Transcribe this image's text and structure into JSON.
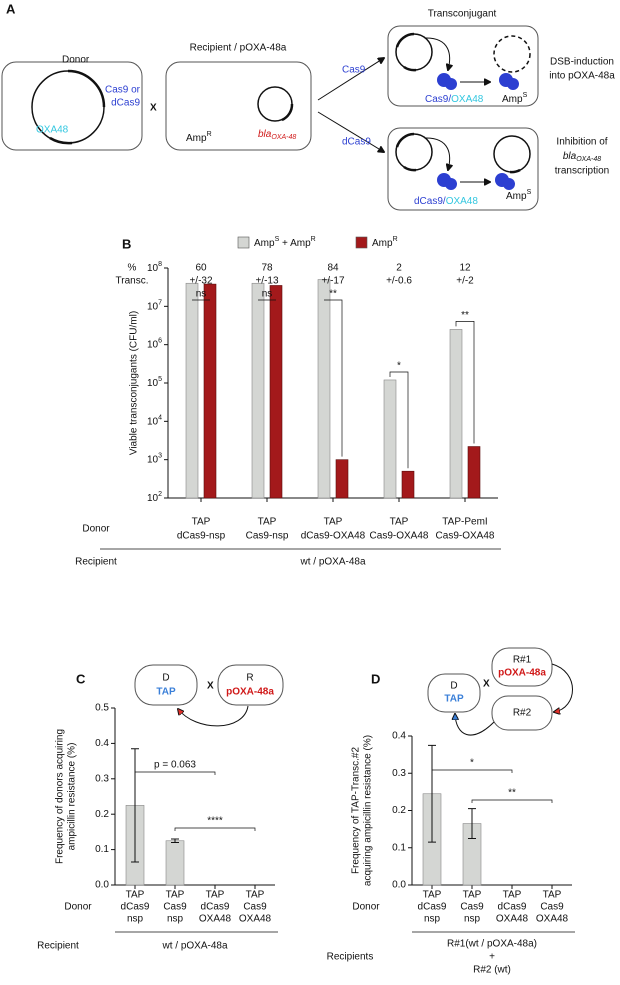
{
  "panel_a": {
    "label": "A",
    "donor": {
      "title": "Donor",
      "cas9": [
        "Cas9 or",
        "dCas9"
      ],
      "oxa": "OXA48"
    },
    "cross": "X",
    "recipient": {
      "title": "Recipient / pOXA-48a",
      "gene": "blaOXA-48",
      "marker": "AmpR"
    },
    "arrows": {
      "top": "Cas9",
      "bottom": "dCas9"
    },
    "transconjugant": {
      "title": "Transconjugant",
      "top": {
        "protein": "Cas9/",
        "guide": "OXA48",
        "marker": "AmpS",
        "outcome": [
          "DSB-induction",
          "into pOXA-48a"
        ]
      },
      "bottom": {
        "protein": "dCas9/",
        "guide": "OXA48",
        "marker": "AmpS",
        "outcome": [
          "Inhibition of",
          "blaOXA-48",
          "transcription"
        ]
      }
    }
  },
  "chart_data": [
    {
      "type": "bar",
      "panel": "B",
      "log_scale": true,
      "y_label": [
        "Viable transconjugants (CFU/ml)"
      ],
      "categories": [
        [
          "TAP",
          "dCas9-nsp"
        ],
        [
          "TAP",
          "Cas9-nsp"
        ],
        [
          "TAP",
          "dCas9-OXA48"
        ],
        [
          "TAP",
          "Cas9-OXA48"
        ],
        [
          "TAP-PemI",
          "Cas9-OXA48"
        ]
      ],
      "series": [
        {
          "name": "AmpS + AmpR",
          "color": "#d4d6d3",
          "values": [
            40000000,
            40000000,
            50000000,
            120000,
            2500000
          ]
        },
        {
          "name": "AmpR",
          "color": "#a3191b",
          "values": [
            38000000,
            35000000,
            1000,
            500,
            2200
          ]
        }
      ],
      "ylim": [
        100,
        100000000
      ],
      "yticks": [
        {
          "value": 100,
          "label": "10",
          "exponent": "2"
        },
        {
          "value": 1000,
          "label": "10",
          "exponent": "3"
        },
        {
          "value": 10000,
          "label": "10",
          "exponent": "4"
        },
        {
          "value": 100000,
          "label": "10",
          "exponent": "5"
        },
        {
          "value": 1000000,
          "label": "10",
          "exponent": "6"
        },
        {
          "value": 10000000,
          "label": "10",
          "exponent": "7"
        },
        {
          "value": 100000000,
          "label": "10",
          "exponent": "8"
        }
      ],
      "transconjugation": {
        "label": [
          "%",
          "Transc."
        ],
        "values": [
          60,
          78,
          84,
          2,
          12
        ],
        "errors": [
          "+/-32",
          "+/-13",
          "+/-17",
          "+/-0.6",
          "+/-2"
        ]
      },
      "significance": [
        "ns",
        "ns",
        "**",
        "*",
        "**"
      ],
      "donor_label": "Donor",
      "recipient_label": "Recipient",
      "recipient": [
        "wt / pOXA-48a"
      ]
    },
    {
      "type": "bar",
      "panel": "C",
      "color": "#d4d6d3",
      "diagram": {
        "donor": "D",
        "donor_strain": "TAP",
        "cross": "X",
        "recipient": "R",
        "plasmid": "pOXA-48a"
      },
      "y_label": [
        "Frequency of donors acquiring",
        "ampicillin resistance (%)"
      ],
      "categories": [
        [
          "TAP",
          "dCas9",
          "nsp"
        ],
        [
          "TAP",
          "Cas9",
          "nsp"
        ],
        [
          "TAP",
          "dCas9",
          "OXA48"
        ],
        [
          "TAP",
          "Cas9",
          "OXA48"
        ]
      ],
      "values": [
        0.225,
        0.125,
        0,
        0
      ],
      "errors": [
        0.16,
        0.005,
        0,
        0
      ],
      "ylim": [
        0,
        0.5
      ],
      "yticks": [
        {
          "value": 0,
          "label": "0.0"
        },
        0.1,
        0.2,
        0.3,
        0.4,
        0.5
      ],
      "comparisons": [
        "p = 0.063",
        "****"
      ],
      "donor_label": "Donor",
      "recipient_label": "Recipient",
      "recipient": [
        "wt / pOXA-48a"
      ]
    },
    {
      "type": "bar",
      "panel": "D",
      "color": "#d4d6d3",
      "diagram": {
        "donor": "D",
        "donor_strain": "TAP",
        "cross": "X",
        "recipient": "R#1",
        "plasmid": "pOXA-48a",
        "recipient2": "R#2"
      },
      "y_label": [
        "Frequency of TAP-Transc.#2",
        "acquiring ampicillin resistance (%)"
      ],
      "categories": [
        [
          "TAP",
          "dCas9",
          "nsp"
        ],
        [
          "TAP",
          "Cas9",
          "nsp"
        ],
        [
          "TAP",
          "dCas9",
          "OXA48"
        ],
        [
          "TAP",
          "Cas9",
          "OXA48"
        ]
      ],
      "values": [
        0.245,
        0.165,
        0,
        0
      ],
      "errors": [
        0.13,
        0.04,
        0,
        0
      ],
      "ylim": [
        0,
        0.4
      ],
      "yticks": [
        {
          "value": 0,
          "label": "0.0"
        },
        0.1,
        0.2,
        0.3,
        0.4
      ],
      "comparisons": [
        "*",
        "**"
      ],
      "donor_label": "Donor",
      "recipient_label": "Recipients",
      "recipient": [
        "R#1(wt / pOXA-48a)",
        "+",
        "R#2 (wt)"
      ]
    }
  ]
}
